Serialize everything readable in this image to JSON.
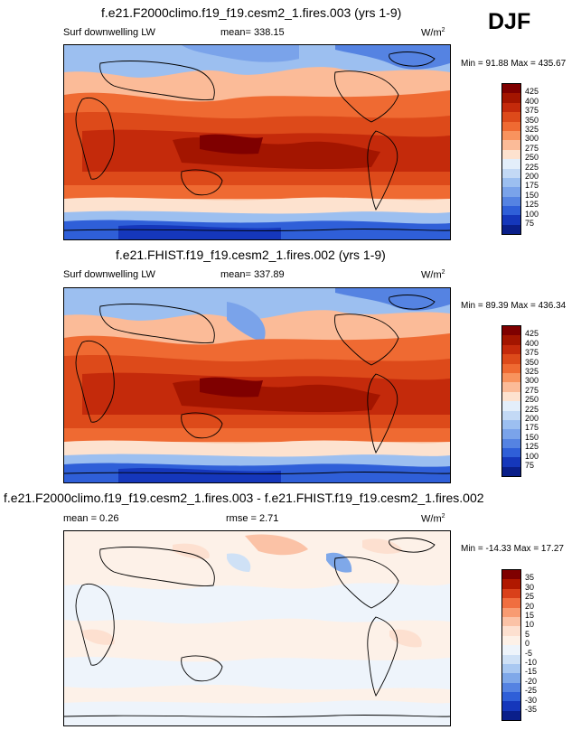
{
  "season": "DJF",
  "panels": [
    {
      "title": "f.e21.F2000climo.f19_f19.cesm2_1.fires.003 (yrs 1-9)",
      "field": "Surf downwelling LW",
      "stat1": "mean= 338.15",
      "units": "W/m",
      "units_sup": "2",
      "minmax": "Min =  91.88 Max = 435.67"
    },
    {
      "title": "f.e21.FHIST.f19_f19.cesm2_1.fires.002 (yrs 1-9)",
      "field": "Surf downwelling LW",
      "stat1": "mean= 337.89",
      "units": "W/m",
      "units_sup": "2",
      "minmax": "Min =  89.39 Max = 436.34"
    },
    {
      "title": "f.e21.F2000climo.f19_f19.cesm2_1.fires.003 - f.e21.FHIST.f19_f19.cesm2_1.fires.002",
      "field": "",
      "stat1": "mean =   0.26",
      "stat2": "rmse =   2.71",
      "units": "W/m",
      "units_sup": "2",
      "minmax": "Min = -14.33 Max =  17.27"
    }
  ],
  "chart_data": [
    {
      "type": "heatmap",
      "title": "f.e21.F2000climo.f19_f19.cesm2_1.fires.003 (yrs 1-9)",
      "variable": "Surf downwelling LW",
      "units": "W/m2",
      "mean": 338.15,
      "min": 91.88,
      "max": 435.67,
      "colorbar_levels": [
        425,
        400,
        375,
        350,
        325,
        300,
        275,
        250,
        225,
        200,
        175,
        150,
        125,
        100,
        75
      ]
    },
    {
      "type": "heatmap",
      "title": "f.e21.FHIST.f19_f19.cesm2_1.fires.002 (yrs 1-9)",
      "variable": "Surf downwelling LW",
      "units": "W/m2",
      "mean": 337.89,
      "min": 89.39,
      "max": 436.34,
      "colorbar_levels": [
        425,
        400,
        375,
        350,
        325,
        300,
        275,
        250,
        225,
        200,
        175,
        150,
        125,
        100,
        75
      ]
    },
    {
      "type": "heatmap",
      "title": "f.e21.F2000climo.f19_f19.cesm2_1.fires.003 - f.e21.FHIST.f19_f19.cesm2_1.fires.002",
      "units": "W/m2",
      "mean": 0.26,
      "rmse": 2.71,
      "min": -14.33,
      "max": 17.27,
      "colorbar_levels": [
        35,
        30,
        25,
        20,
        15,
        10,
        5,
        0,
        -5,
        -10,
        -15,
        -20,
        -25,
        -30,
        -35
      ]
    }
  ],
  "colors": {
    "abs": [
      "#7f0000",
      "#a31500",
      "#c42a0b",
      "#dd4a1a",
      "#ef6a32",
      "#f8935e",
      "#fbbb98",
      "#fde2cf",
      "#e3eefa",
      "#c3d9f5",
      "#9cbff0",
      "#7aa3ea",
      "#5583e2",
      "#2f5fd8",
      "#1537bb",
      "#0a1f8a"
    ],
    "diff": [
      "#7f0000",
      "#b01800",
      "#d9401a",
      "#f06e40",
      "#f89b72",
      "#fbc2a6",
      "#fde0d0",
      "#fdf1e8",
      "#eef4fb",
      "#cfe1f6",
      "#a9c8f1",
      "#7fa8e9",
      "#5583e2",
      "#2f5fd8",
      "#1537bb",
      "#0a1f8a"
    ]
  }
}
